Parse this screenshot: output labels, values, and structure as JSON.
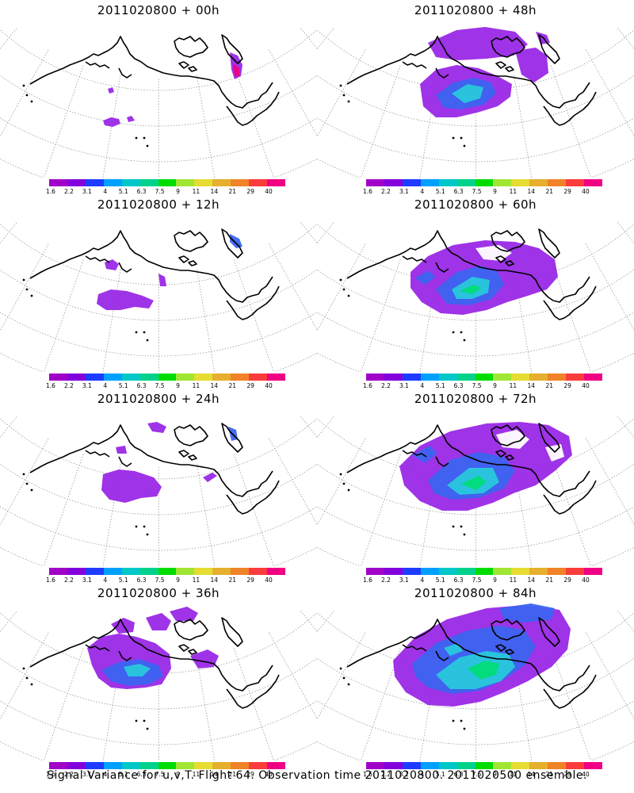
{
  "panels": [
    {
      "title": "2011020800 + 00h",
      "lead_hours": 0
    },
    {
      "title": "2011020800 + 48h",
      "lead_hours": 48
    },
    {
      "title": "2011020800 + 12h",
      "lead_hours": 12
    },
    {
      "title": "2011020800 + 60h",
      "lead_hours": 60
    },
    {
      "title": "2011020800 + 24h",
      "lead_hours": 24
    },
    {
      "title": "2011020800 + 72h",
      "lead_hours": 72
    },
    {
      "title": "2011020800 + 36h",
      "lead_hours": 36
    },
    {
      "title": "2011020800 + 84h",
      "lead_hours": 84
    }
  ],
  "colorbar": {
    "labels": [
      "1.6",
      "2.2",
      "3.1",
      "4",
      "5.1",
      "6.3",
      "7.5",
      "9",
      "11",
      "14",
      "21",
      "29",
      "40"
    ],
    "colors": [
      "#a000c8",
      "#8200dc",
      "#1e3cff",
      "#00a0ff",
      "#00c8c8",
      "#00d28c",
      "#00dc00",
      "#a0e632",
      "#e6dc32",
      "#e6af2d",
      "#f08228",
      "#fa3c3c",
      "#f00082"
    ]
  },
  "caption": "Signal Variance for u,v,T. Flight 64. Observation time 2011020800. 2011020500 ensemble.",
  "map_colors": {
    "coast": "#000000",
    "grid": "#9a9a9a",
    "fill_low": "#9a28e6",
    "fill_mid": "#3c64f0",
    "fill_high": "#28c8dc",
    "fill_peak": "#00dc78",
    "fill_hot": "#f00082"
  }
}
